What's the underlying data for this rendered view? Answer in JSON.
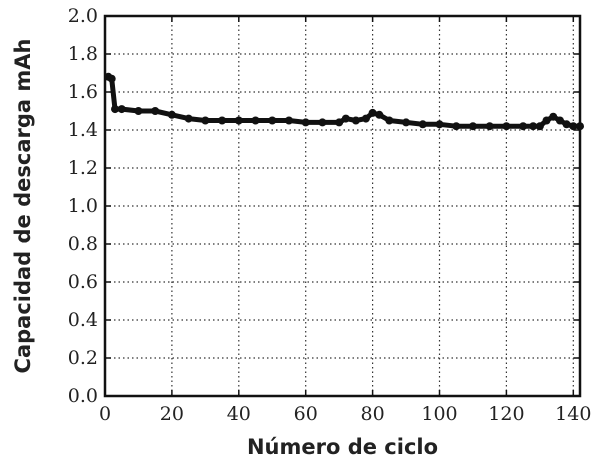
{
  "chart_data": {
    "type": "line",
    "title": "",
    "xlabel": "Número de ciclo",
    "ylabel": "Capacidad de descarga  mAh",
    "xlim": [
      0,
      142
    ],
    "ylim": [
      0.0,
      2.0
    ],
    "xticks": [
      0,
      20,
      40,
      60,
      80,
      100,
      120,
      140
    ],
    "yticks": [
      0.0,
      0.2,
      0.4,
      0.6,
      0.8,
      1.0,
      1.2,
      1.4,
      1.6,
      1.8,
      2.0
    ],
    "xtick_labels": [
      "0",
      "20",
      "40",
      "60",
      "80",
      "100",
      "120",
      "140"
    ],
    "ytick_labels": [
      "0.0",
      "0.2",
      "0.4",
      "0.6",
      "0.8",
      "1.0",
      "1.2",
      "1.4",
      "1.6",
      "1.8",
      "2.0"
    ],
    "grid": true,
    "series": [
      {
        "color": "#111111",
        "marker": "circle",
        "x": [
          1,
          2,
          3,
          5,
          10,
          15,
          20,
          25,
          30,
          35,
          40,
          45,
          50,
          55,
          60,
          65,
          70,
          72,
          75,
          78,
          80,
          82,
          85,
          90,
          95,
          100,
          105,
          110,
          115,
          120,
          125,
          128,
          130,
          132,
          134,
          136,
          138,
          140,
          142
        ],
        "y": [
          1.68,
          1.67,
          1.51,
          1.51,
          1.5,
          1.5,
          1.48,
          1.46,
          1.45,
          1.45,
          1.45,
          1.45,
          1.45,
          1.45,
          1.44,
          1.44,
          1.44,
          1.46,
          1.45,
          1.46,
          1.49,
          1.48,
          1.45,
          1.44,
          1.43,
          1.43,
          1.42,
          1.42,
          1.42,
          1.42,
          1.42,
          1.42,
          1.42,
          1.45,
          1.47,
          1.45,
          1.43,
          1.42,
          1.42
        ]
      }
    ]
  }
}
